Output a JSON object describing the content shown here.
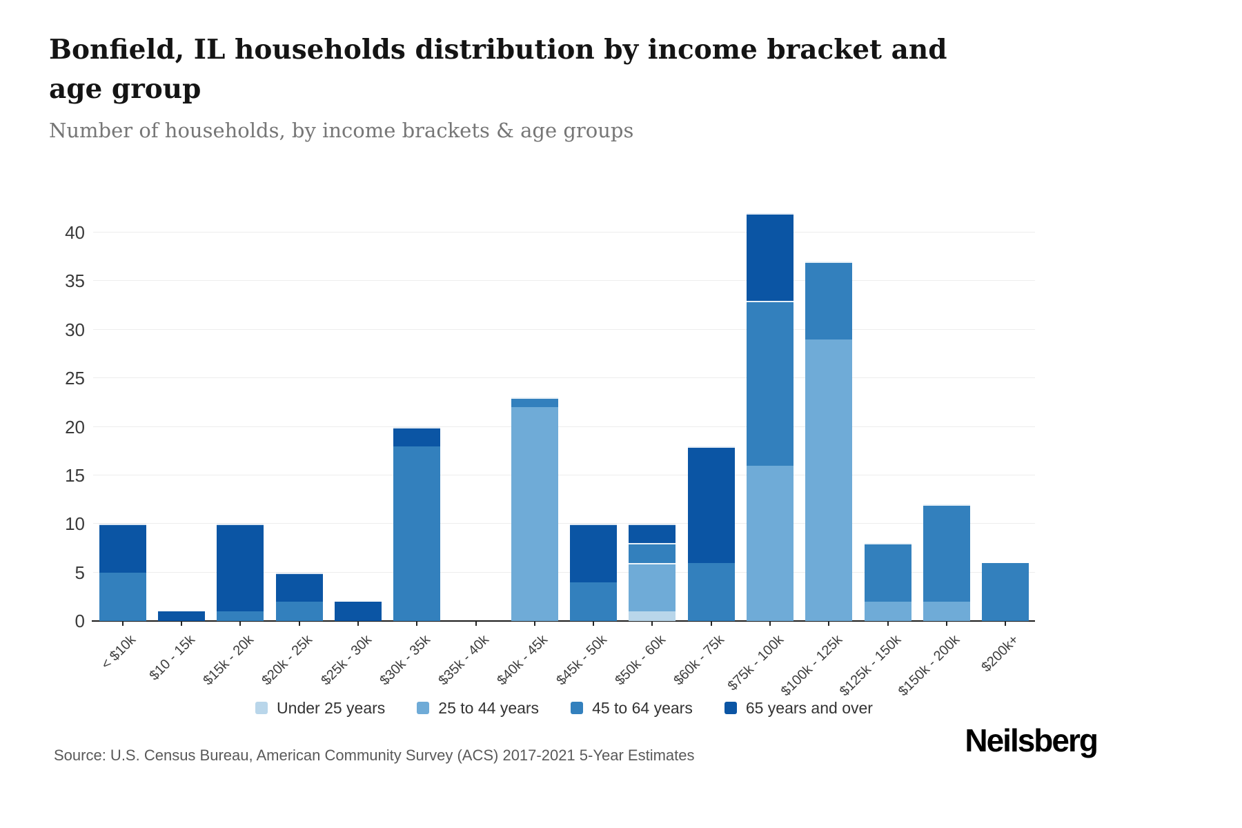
{
  "header": {
    "title": "Bonfield, IL households distribution by income bracket and age group",
    "subtitle": "Number of households, by income brackets & age groups"
  },
  "chart_data": {
    "type": "bar",
    "stacked": true,
    "title": "Bonfield, IL households distribution by income bracket and age group",
    "subtitle": "Number of households, by income brackets & age groups",
    "xlabel": "",
    "ylabel": "",
    "ylim": [
      0,
      44
    ],
    "y_ticks": [
      0,
      5,
      10,
      15,
      20,
      25,
      30,
      35,
      40
    ],
    "grid": "horizontal",
    "legend_position": "bottom",
    "categories": [
      "< $10k",
      "$10 - 15k",
      "$15k - 20k",
      "$20k - 25k",
      "$25k - 30k",
      "$30k - 35k",
      "$35k - 40k",
      "$40k - 45k",
      "$45k - 50k",
      "$50k - 60k",
      "$60k - 75k",
      "$75k - 100k",
      "$100k - 125k",
      "$125k - 150k",
      "$150k - 200k",
      "$200k+"
    ],
    "series": [
      {
        "name": "Under 25 years",
        "color": "#b9d6ea",
        "values": [
          0,
          0,
          0,
          0,
          0,
          0,
          0,
          0,
          0,
          1,
          0,
          0,
          0,
          0,
          0,
          0
        ]
      },
      {
        "name": "25 to 44 years",
        "color": "#6fabd7",
        "values": [
          0,
          0,
          0,
          0,
          0,
          0,
          0,
          22,
          0,
          5,
          0,
          16,
          29,
          2,
          2,
          0
        ]
      },
      {
        "name": "45 to 64 years",
        "color": "#3380bd",
        "values": [
          5,
          0,
          1,
          2,
          0,
          18,
          0,
          1,
          4,
          2,
          6,
          17,
          8,
          6,
          10,
          6
        ]
      },
      {
        "name": "65 years and over",
        "color": "#0b55a4",
        "values": [
          5,
          1,
          9,
          3,
          2,
          2,
          0,
          0,
          6,
          2,
          12,
          9,
          0,
          0,
          0,
          0
        ]
      }
    ],
    "totals": [
      10,
      1,
      10,
      5,
      2,
      20,
      0,
      23,
      10,
      10,
      18,
      42,
      37,
      8,
      12,
      6
    ]
  },
  "footer": {
    "source": "Source: U.S. Census Bureau, American Community Survey (ACS) 2017-2021 5-Year Estimates",
    "logo": "Neilsberg"
  }
}
